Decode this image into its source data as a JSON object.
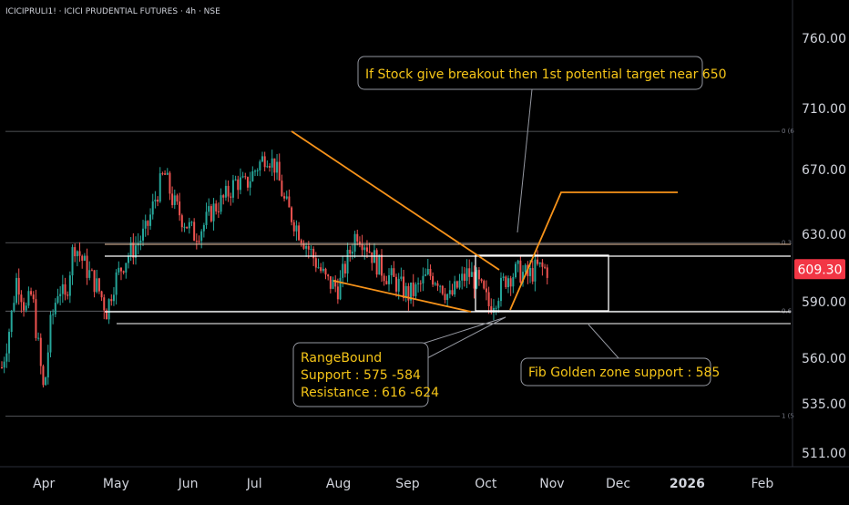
{
  "header": {
    "symbol_line": "ICICIPRULI1! · ICICI PRUDENTIAL FUTURES · 4h · NSE"
  },
  "chart_data": {
    "type": "candlestick",
    "price_axis": {
      "tick_labels": [
        "760.00",
        "710.00",
        "670.00",
        "630.00",
        "590.00",
        "560.00",
        "535.00",
        "511.00"
      ],
      "tick_values": [
        760,
        710,
        670,
        630,
        590,
        560,
        535,
        511
      ],
      "ylim": [
        500,
        790
      ]
    },
    "time_axis": {
      "tick_labels": [
        "Apr",
        "May",
        "Jun",
        "Jul",
        "Aug",
        "Sep",
        "Oct",
        "Nov",
        "Dec",
        "2026",
        "Feb"
      ],
      "bold_labels": [
        "2026"
      ]
    },
    "last_price": {
      "label": "609.30",
      "value": 609.3,
      "color": "#f23645"
    },
    "colors": {
      "up": "#26a69a",
      "down": "#ef5350",
      "trendline": "#f7931a",
      "box": "#ffffff",
      "note_text": "#f5c518",
      "fib_line": "#9598a1"
    },
    "fib_levels": [
      {
        "label": "0 (6",
        "value": 695
      },
      {
        "label": "0.3",
        "value": 625
      },
      {
        "label": "0.6",
        "value": 585
      },
      {
        "label": "1 (5",
        "value": 529
      }
    ],
    "annotations": [
      {
        "id": "breakout-note",
        "text": [
          "If Stock give breakout then 1st potential target near 650"
        ]
      },
      {
        "id": "range-note",
        "text": [
          "RangeBound",
          "Support : 575 -584",
          "Resistance : 616 -624"
        ]
      },
      {
        "id": "fib-note",
        "text": [
          "Fib Golden zone support : 585"
        ]
      }
    ],
    "series": [
      {
        "ohlc_anchors": [
          [
            0,
            555
          ],
          [
            0.03,
            580
          ],
          [
            0.05,
            605
          ],
          [
            0.08,
            585
          ],
          [
            0.1,
            595
          ],
          [
            0.14,
            540
          ],
          [
            0.16,
            575
          ],
          [
            0.19,
            600
          ],
          [
            0.21,
            590
          ],
          [
            0.24,
            625
          ],
          [
            0.28,
            610
          ],
          [
            0.32,
            598
          ],
          [
            0.35,
            585
          ],
          [
            0.37,
            600
          ],
          [
            0.41,
            615
          ],
          [
            0.44,
            622
          ],
          [
            0.48,
            632
          ],
          [
            0.51,
            652
          ],
          [
            0.54,
            668
          ],
          [
            0.57,
            650
          ],
          [
            0.6,
            640
          ],
          [
            0.64,
            630
          ],
          [
            0.67,
            635
          ],
          [
            0.7,
            645
          ],
          [
            0.74,
            652
          ],
          [
            0.78,
            663
          ],
          [
            0.81,
            660
          ],
          [
            0.85,
            672
          ],
          [
            0.88,
            680
          ],
          [
            0.91,
            672
          ],
          [
            0.94,
            650
          ],
          [
            0.98,
            635
          ],
          [
            1.01,
            625
          ],
          [
            1.05,
            612
          ],
          [
            1.08,
            602
          ],
          [
            1.12,
            598
          ],
          [
            1.15,
            615
          ],
          [
            1.18,
            632
          ],
          [
            1.21,
            625
          ],
          [
            1.25,
            612
          ],
          [
            1.28,
            606
          ],
          [
            1.32,
            600
          ],
          [
            1.35,
            594
          ],
          [
            1.38,
            597
          ],
          [
            1.42,
            606
          ],
          [
            1.45,
            604
          ],
          [
            1.49,
            592
          ],
          [
            1.52,
            600
          ],
          [
            1.55,
            607
          ],
          [
            1.58,
            602
          ],
          [
            1.62,
            588
          ],
          [
            1.65,
            595
          ],
          [
            1.68,
            605
          ],
          [
            1.72,
            608
          ],
          [
            1.75,
            605
          ],
          [
            1.78,
            610
          ],
          [
            1.82,
            609
          ]
        ]
      }
    ]
  }
}
